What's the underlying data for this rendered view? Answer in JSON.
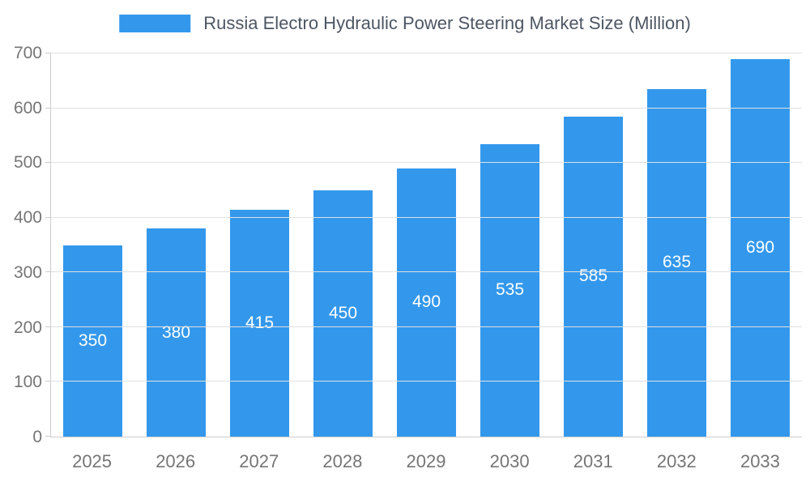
{
  "chart_data": {
    "type": "bar",
    "title": "Russia Electro Hydraulic Power Steering Market Size (Million)",
    "categories": [
      "2025",
      "2026",
      "2027",
      "2028",
      "2029",
      "2030",
      "2031",
      "2032",
      "2033"
    ],
    "values": [
      350,
      380,
      415,
      450,
      490,
      535,
      585,
      635,
      690
    ],
    "xlabel": "",
    "ylabel": "",
    "ylim": [
      0,
      700
    ],
    "yticks": [
      0,
      100,
      200,
      300,
      400,
      500,
      600,
      700
    ],
    "grid": "horizontal",
    "legend_position": "top-center",
    "value_labels": "inside-center",
    "colors": {
      "bar": "#3398ec",
      "value_label": "#ffffff",
      "axis_label": "#757575",
      "title": "#4d5663",
      "gridline": "#e0e0e0",
      "axis_line": "#cccccc",
      "background": "#ffffff"
    }
  }
}
